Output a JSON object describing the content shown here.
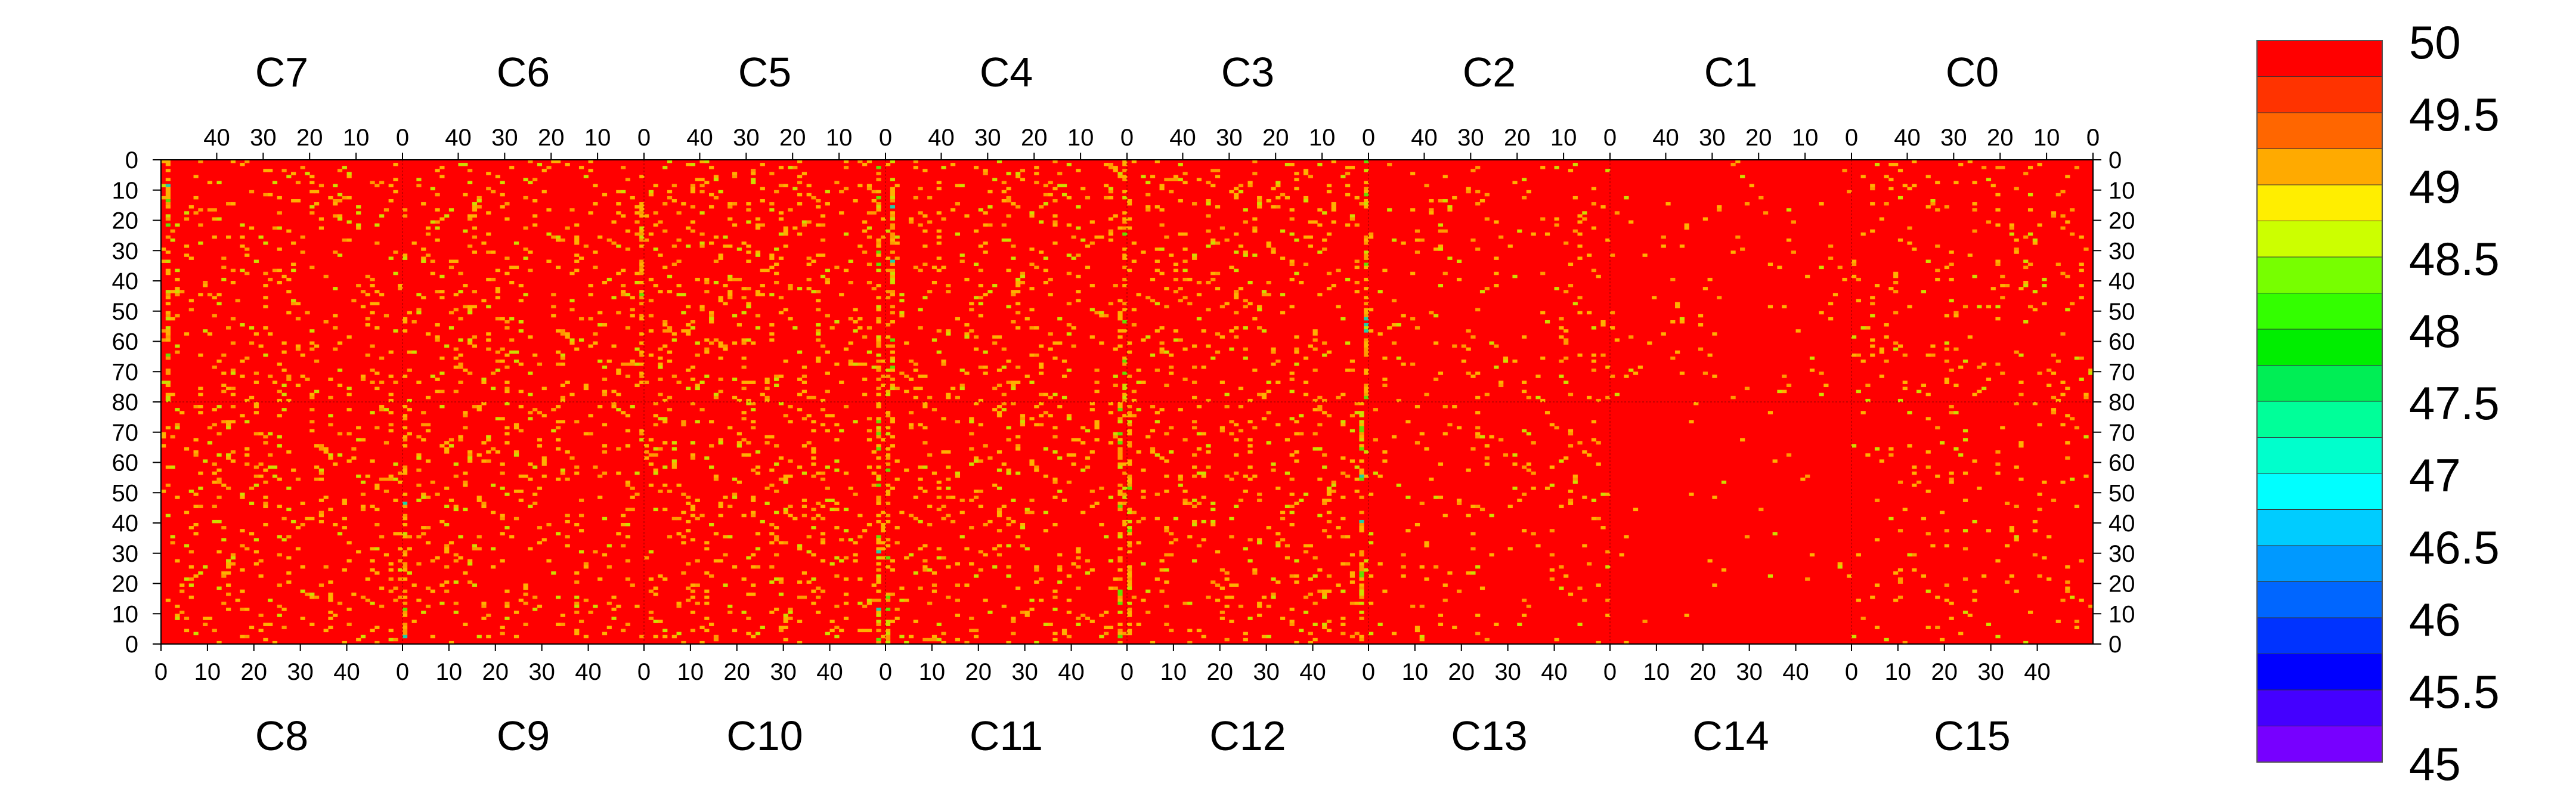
{
  "chart_data": {
    "type": "heatmap",
    "title": "",
    "xlabel": "",
    "ylabel": "",
    "top_chips": [
      "C7",
      "C6",
      "C5",
      "C4",
      "C3",
      "C2",
      "C1",
      "C0"
    ],
    "bottom_chips": [
      "C8",
      "C9",
      "C10",
      "C11",
      "C12",
      "C13",
      "C14",
      "C15"
    ],
    "columns_per_chip": 52,
    "rows_per_half": 80,
    "top_x_ticks": [
      40,
      30,
      20,
      10,
      0
    ],
    "bottom_x_ticks": [
      0,
      10,
      20,
      30,
      40
    ],
    "y_ticks_top_half": [
      0,
      10,
      20,
      30,
      40,
      50,
      60,
      70,
      80
    ],
    "y_ticks_bottom_half": [
      70,
      60,
      50,
      40,
      30,
      20,
      10,
      0
    ],
    "dominant_value": 50,
    "colorbar": {
      "min": 45,
      "max": 50,
      "tick_labels": [
        "50",
        "49.5",
        "49",
        "48.5",
        "48",
        "47.5",
        "47",
        "46.5",
        "46",
        "45.5",
        "45"
      ],
      "colors": [
        "#ff0000",
        "#ff3300",
        "#ff6600",
        "#ffaa00",
        "#ffee00",
        "#ccff00",
        "#77ff00",
        "#33ff00",
        "#00ee00",
        "#00ee55",
        "#00ff99",
        "#00ffcc",
        "#00ffff",
        "#00ccff",
        "#0099ff",
        "#0066ff",
        "#0033ff",
        "#0000ff",
        "#4400ff",
        "#7700ff"
      ]
    },
    "scatter_colors": {
      "orange": "#ff9900",
      "amber": "#ffb000",
      "yellow_green": "#ccdd00",
      "green": "#66dd00",
      "cyan": "#22ccaa"
    },
    "per_chip_noise_density": {
      "C7": 0.06,
      "C6": 0.07,
      "C5": 0.09,
      "C4": 0.07,
      "C3": 0.07,
      "C2": 0.04,
      "C1": 0.015,
      "C0": 0.05,
      "C8": 0.07,
      "C9": 0.07,
      "C10": 0.08,
      "C11": 0.07,
      "C12": 0.07,
      "C13": 0.03,
      "C14": 0.01,
      "C15": 0.025
    },
    "hot_column_density": 0.45,
    "hot_columns": {
      "C7": [
        1
      ],
      "C6": [
        51
      ],
      "C5": [
        50
      ],
      "C4": [
        1,
        51
      ],
      "C3": [
        51
      ],
      "C9": [
        0
      ],
      "C10": [
        50
      ],
      "C11": [
        0,
        50
      ],
      "C12": [
        0,
        50
      ]
    }
  }
}
